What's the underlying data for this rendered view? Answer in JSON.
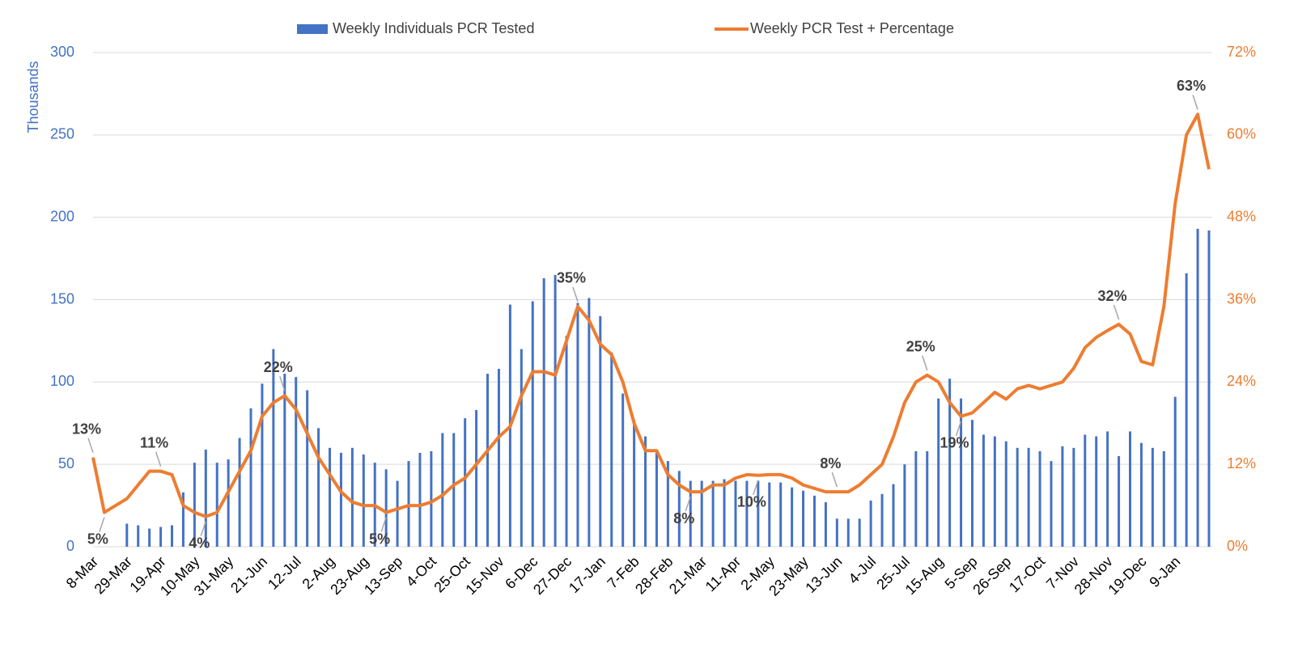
{
  "chart_data": {
    "type": "bar",
    "y_axis_title": "Thousands",
    "categories": [
      "8-Mar",
      null,
      null,
      "29-Mar",
      null,
      null,
      "19-Apr",
      null,
      null,
      "10-May",
      null,
      null,
      "31-May",
      null,
      null,
      "21-Jun",
      null,
      null,
      "12-Jul",
      null,
      null,
      "2-Aug",
      null,
      null,
      "23-Aug",
      null,
      null,
      "13-Sep",
      null,
      null,
      "4-Oct",
      null,
      null,
      "25-Oct",
      null,
      null,
      "15-Nov",
      null,
      null,
      "6-Dec",
      null,
      null,
      "27-Dec",
      null,
      null,
      "17-Jan",
      null,
      null,
      "7-Feb",
      null,
      null,
      "28-Feb",
      null,
      null,
      "21-Mar",
      null,
      null,
      "11-Apr",
      null,
      null,
      "2-May",
      null,
      null,
      "23-May",
      null,
      null,
      "13-Jun",
      null,
      null,
      "4-Jul",
      null,
      null,
      "25-Jul",
      null,
      null,
      "15-Aug",
      null,
      null,
      "5-Sep",
      null,
      null,
      "26-Sep",
      null,
      null,
      "17-Oct",
      null,
      null,
      "7-Nov",
      null,
      null,
      "28-Nov",
      null,
      null,
      "19-Dec",
      null,
      null,
      "9-Jan",
      null,
      null,
      null
    ],
    "series": [
      {
        "name": "Weekly Individuals PCR Tested",
        "type": "bar",
        "color": "#4472c4",
        "values": [
          0,
          0,
          0,
          14,
          13,
          11,
          12,
          13,
          33,
          51,
          59,
          51,
          53,
          66,
          84,
          99,
          120,
          105,
          103,
          95,
          72,
          60,
          57,
          60,
          56,
          51,
          47,
          40,
          52,
          57,
          58,
          69,
          69,
          78,
          83,
          105,
          108,
          147,
          120,
          149,
          163,
          165,
          128,
          148,
          151,
          140,
          118,
          93,
          77,
          67,
          57,
          52,
          46,
          40,
          40,
          40,
          41,
          40,
          40,
          40,
          39,
          39,
          36,
          34,
          31,
          27,
          17,
          17,
          17,
          28,
          32,
          38,
          50,
          58,
          58,
          90,
          102,
          90,
          77,
          68,
          67,
          64,
          60,
          60,
          58,
          52,
          61,
          60,
          68,
          67,
          70,
          55,
          70,
          63,
          60,
          58,
          91,
          166,
          193,
          192
        ]
      },
      {
        "name": "Weekly PCR Test + Percentage",
        "type": "line",
        "axis": "y2",
        "color": "#ed7d31",
        "values": [
          13,
          5,
          6,
          7,
          9,
          11,
          11,
          10.5,
          6,
          5,
          4.4,
          5,
          8,
          11,
          14,
          19,
          21,
          22,
          20,
          16.5,
          13,
          10.5,
          8,
          6.5,
          6,
          6,
          5,
          5.5,
          6,
          6,
          6.5,
          7.5,
          9,
          10,
          12,
          14,
          16,
          17.5,
          22,
          25.5,
          25.5,
          25,
          30,
          35,
          33,
          29.5,
          28,
          24,
          18,
          14,
          14,
          10.5,
          9,
          8,
          8,
          9,
          9,
          10,
          10.5,
          10.4,
          10.5,
          10.5,
          10,
          9,
          8.5,
          8,
          8,
          8,
          9,
          10.5,
          12,
          16,
          21,
          24,
          25,
          24,
          21,
          19,
          19.5,
          21,
          22.5,
          21.5,
          23,
          23.5,
          23,
          23.5,
          24,
          26,
          29,
          30.5,
          31.5,
          32.4,
          31,
          27,
          26.5,
          35,
          50,
          60,
          63,
          55
        ],
        "value_labels": [
          "13%",
          "5%",
          null,
          null,
          null,
          null,
          "11%",
          null,
          null,
          null,
          "4%",
          null,
          null,
          null,
          null,
          null,
          null,
          "22%",
          null,
          null,
          null,
          null,
          null,
          null,
          null,
          null,
          "5%",
          null,
          null,
          null,
          null,
          null,
          null,
          null,
          null,
          null,
          null,
          null,
          null,
          null,
          null,
          null,
          null,
          "35%",
          null,
          null,
          null,
          null,
          null,
          null,
          null,
          null,
          null,
          "8%",
          null,
          null,
          null,
          null,
          null,
          "10%",
          null,
          null,
          null,
          null,
          null,
          null,
          "8%",
          null,
          null,
          null,
          null,
          null,
          null,
          null,
          "25%",
          null,
          null,
          "19%",
          null,
          null,
          null,
          null,
          null,
          null,
          null,
          null,
          null,
          null,
          null,
          null,
          null,
          "32%",
          null,
          null,
          null,
          null,
          null,
          null,
          "63%",
          null
        ]
      }
    ],
    "ylim": [
      0,
      300
    ],
    "yticks": [
      0,
      50,
      100,
      150,
      200,
      250,
      300
    ],
    "y2lim": [
      0,
      72
    ],
    "y2ticks": [
      {
        "value": 0,
        "label": "0%"
      },
      {
        "value": 12,
        "label": "12%"
      },
      {
        "value": 24,
        "label": "24%"
      },
      {
        "value": 36,
        "label": "36%"
      },
      {
        "value": 48,
        "label": "48%"
      },
      {
        "value": 60,
        "label": "60%"
      },
      {
        "value": 72,
        "label": "72%"
      }
    ],
    "grid": true,
    "legend": "top"
  }
}
